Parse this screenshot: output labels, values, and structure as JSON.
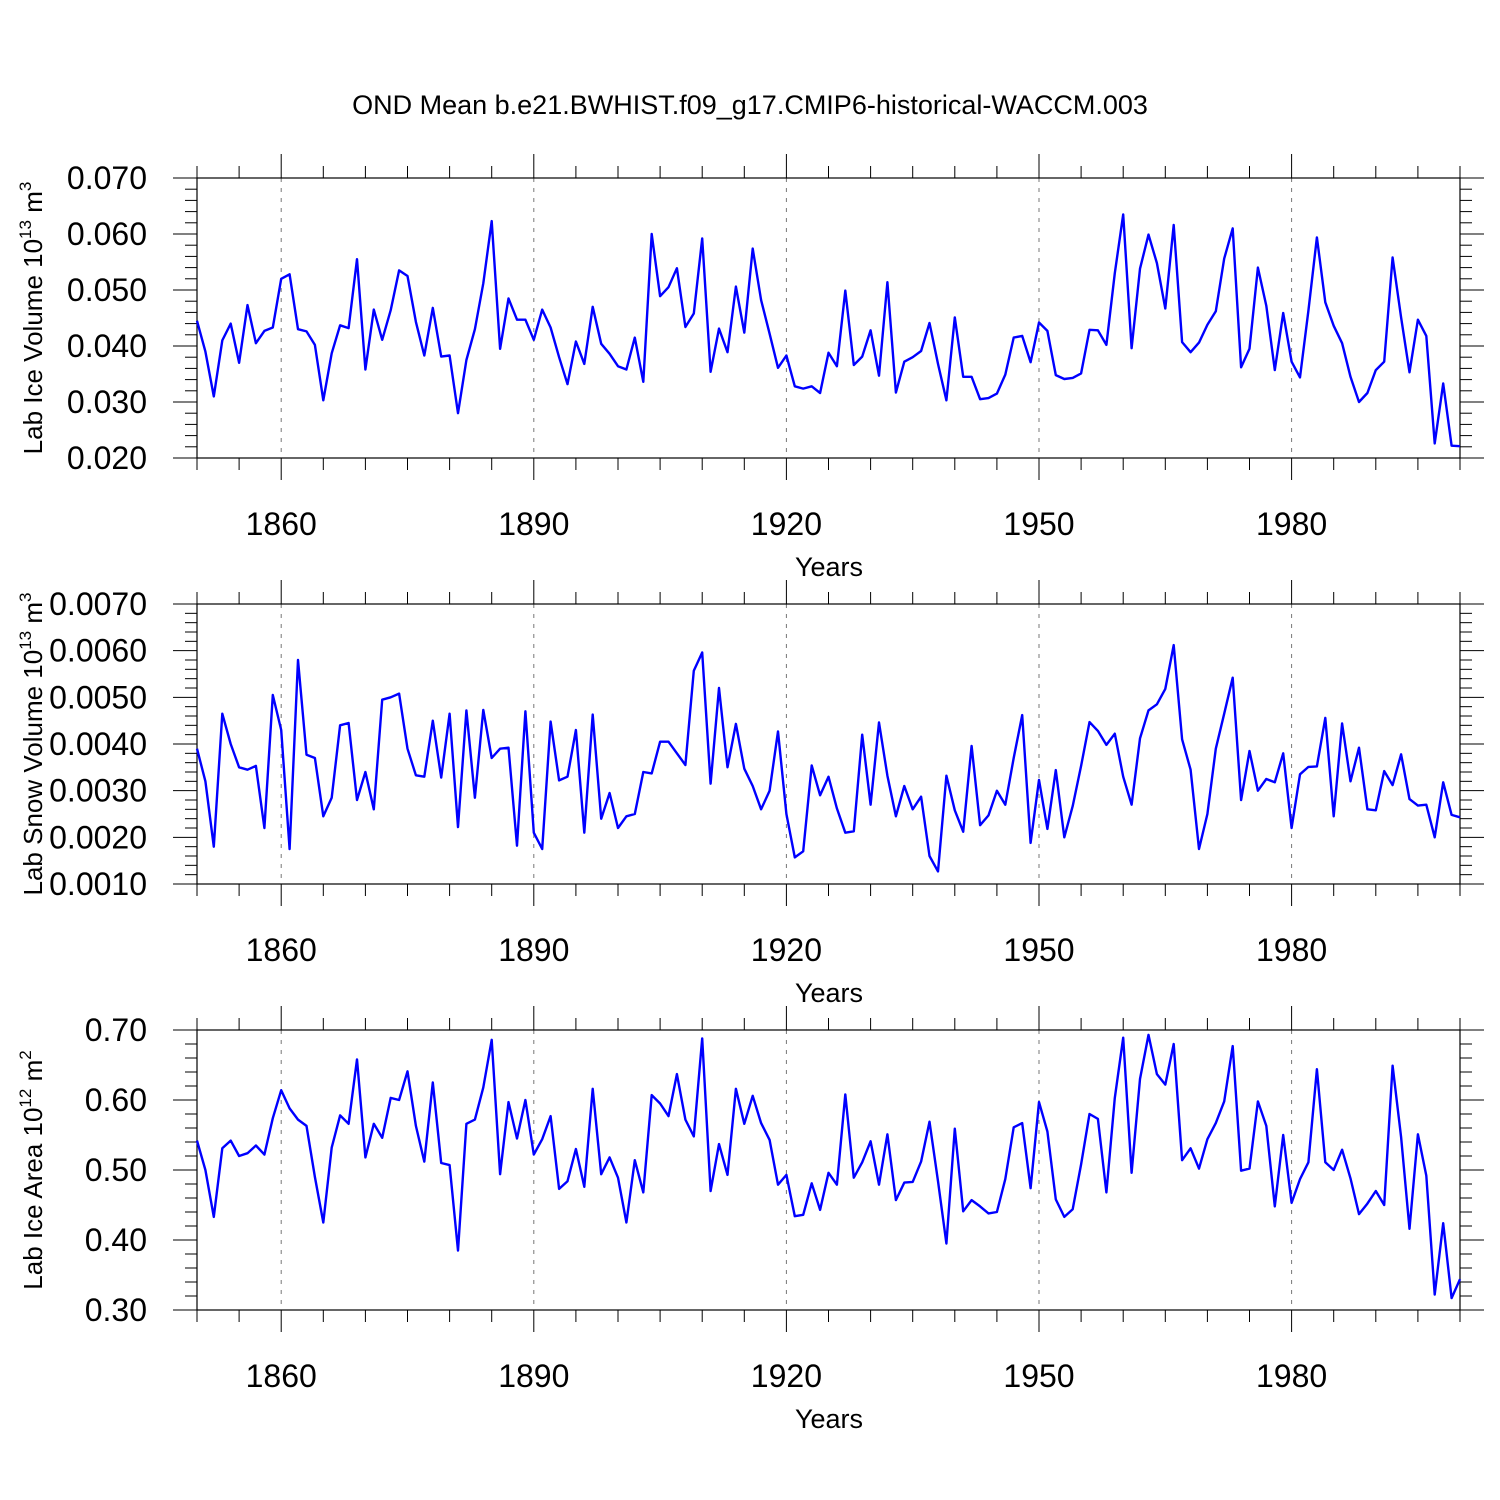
{
  "figure_title": "OND Mean b.e21.BWHIST.f09_g17.CMIP6-historical-WACCM.003",
  "colors": {
    "line": "#0000ff",
    "axis": "#000000",
    "grid": "#777777"
  },
  "chart_data": [
    {
      "type": "line",
      "ylabel_main": "Lab Ice Volume 10",
      "ylabel_exp": "13",
      "ylabel_unit": " m",
      "ylabel_unit_exp": "3",
      "xlabel": "Years",
      "xlim": [
        1850,
        2000
      ],
      "ylim": [
        0.02,
        0.07
      ],
      "yticks": [
        0.02,
        0.03,
        0.04,
        0.05,
        0.06,
        0.07
      ],
      "ytick_labels": [
        "0.020",
        "0.030",
        "0.040",
        "0.050",
        "0.060",
        "0.070"
      ],
      "xticks": [
        1860,
        1890,
        1920,
        1950,
        1980
      ],
      "xtick_labels": [
        "1860",
        "1890",
        "1920",
        "1950",
        "1980"
      ],
      "x_start": 1850,
      "values": [
        0.0445,
        0.039,
        0.031,
        0.041,
        0.044,
        0.037,
        0.0473,
        0.0405,
        0.0427,
        0.0433,
        0.052,
        0.0528,
        0.043,
        0.0426,
        0.0402,
        0.0303,
        0.0387,
        0.0437,
        0.0432,
        0.0555,
        0.0358,
        0.0465,
        0.0411,
        0.0464,
        0.0535,
        0.0525,
        0.0443,
        0.0383,
        0.0468,
        0.0381,
        0.0383,
        0.028,
        0.0375,
        0.043,
        0.0512,
        0.0623,
        0.0395,
        0.0485,
        0.0447,
        0.0447,
        0.0411,
        0.0465,
        0.0433,
        0.038,
        0.0332,
        0.0408,
        0.0368,
        0.047,
        0.0404,
        0.0386,
        0.0364,
        0.0358,
        0.0415,
        0.0336,
        0.06,
        0.0489,
        0.0505,
        0.0539,
        0.0434,
        0.0458,
        0.0592,
        0.0354,
        0.0431,
        0.0389,
        0.0506,
        0.0424,
        0.0574,
        0.0482,
        0.0422,
        0.0361,
        0.0383,
        0.0328,
        0.0324,
        0.0328,
        0.0316,
        0.0388,
        0.0364,
        0.0499,
        0.0366,
        0.0381,
        0.0428,
        0.0347,
        0.0514,
        0.0317,
        0.0372,
        0.038,
        0.0391,
        0.0441,
        0.0368,
        0.0303,
        0.0451,
        0.0345,
        0.0345,
        0.0305,
        0.0307,
        0.0315,
        0.0349,
        0.0415,
        0.0418,
        0.0371,
        0.0442,
        0.0427,
        0.0348,
        0.0341,
        0.0343,
        0.0351,
        0.0429,
        0.0428,
        0.0402,
        0.053,
        0.0635,
        0.0396,
        0.0538,
        0.0599,
        0.0548,
        0.0467,
        0.0616,
        0.0407,
        0.0389,
        0.0406,
        0.0438,
        0.0462,
        0.0556,
        0.061,
        0.0362,
        0.0395,
        0.054,
        0.0472,
        0.0357,
        0.0459,
        0.0372,
        0.0344,
        0.0463,
        0.0594,
        0.0478,
        0.0436,
        0.0405,
        0.0345,
        0.03,
        0.0316,
        0.0357,
        0.0372,
        0.0558,
        0.0451,
        0.0353,
        0.0447,
        0.0418,
        0.0226,
        0.0333,
        0.0222,
        0.0221
      ]
    },
    {
      "type": "line",
      "ylabel_main": "Lab Snow Volume 10",
      "ylabel_exp": "13",
      "ylabel_unit": " m",
      "ylabel_unit_exp": "3",
      "xlabel": "Years",
      "xlim": [
        1850,
        2000
      ],
      "ylim": [
        0.001,
        0.007
      ],
      "yticks": [
        0.001,
        0.002,
        0.003,
        0.004,
        0.005,
        0.006,
        0.007
      ],
      "ytick_labels": [
        "0.0010",
        "0.0020",
        "0.0030",
        "0.0040",
        "0.0050",
        "0.0060",
        "0.0070"
      ],
      "xticks": [
        1860,
        1890,
        1920,
        1950,
        1980
      ],
      "xtick_labels": [
        "1860",
        "1890",
        "1920",
        "1950",
        "1980"
      ],
      "x_start": 1850,
      "values": [
        0.0039,
        0.0032,
        0.0018,
        0.00465,
        0.004,
        0.0035,
        0.00345,
        0.00353,
        0.0022,
        0.00505,
        0.0043,
        0.00175,
        0.0058,
        0.00377,
        0.0037,
        0.00245,
        0.00285,
        0.0044,
        0.00445,
        0.0028,
        0.0034,
        0.0026,
        0.00495,
        0.005,
        0.00508,
        0.0039,
        0.00333,
        0.0033,
        0.0045,
        0.00328,
        0.00465,
        0.00222,
        0.00472,
        0.00285,
        0.00473,
        0.0037,
        0.0039,
        0.00392,
        0.00182,
        0.0047,
        0.0021,
        0.00175,
        0.00448,
        0.00322,
        0.0033,
        0.0043,
        0.0021,
        0.00463,
        0.0024,
        0.00295,
        0.0022,
        0.00245,
        0.0025,
        0.0034,
        0.00337,
        0.00405,
        0.00405,
        0.0038,
        0.00355,
        0.00557,
        0.00596,
        0.00315,
        0.0052,
        0.0035,
        0.00443,
        0.00347,
        0.0031,
        0.0026,
        0.003,
        0.00427,
        0.0025,
        0.00157,
        0.0017,
        0.00354,
        0.0029,
        0.0033,
        0.00262,
        0.0021,
        0.00213,
        0.0042,
        0.0027,
        0.00446,
        0.00332,
        0.00245,
        0.0031,
        0.0026,
        0.00287,
        0.0016,
        0.00127,
        0.00332,
        0.00258,
        0.00212,
        0.00396,
        0.00226,
        0.00247,
        0.003,
        0.0027,
        0.0037,
        0.00462,
        0.00188,
        0.00323,
        0.00218,
        0.00344,
        0.002,
        0.00267,
        0.00353,
        0.00447,
        0.00428,
        0.00398,
        0.00422,
        0.0033,
        0.0027,
        0.00412,
        0.00472,
        0.00485,
        0.00518,
        0.00612,
        0.0041,
        0.00345,
        0.00175,
        0.0025,
        0.0039,
        0.00465,
        0.00542,
        0.0028,
        0.00385,
        0.003,
        0.00325,
        0.00318,
        0.0038,
        0.0022,
        0.00335,
        0.00351,
        0.00352,
        0.00456,
        0.00245,
        0.00444,
        0.0032,
        0.00392,
        0.0026,
        0.00258,
        0.00342,
        0.00312,
        0.00378,
        0.00282,
        0.00268,
        0.0027,
        0.002,
        0.00318,
        0.00248,
        0.00243
      ]
    },
    {
      "type": "line",
      "ylabel_main": "Lab Ice Area 10",
      "ylabel_exp": "12",
      "ylabel_unit": " m",
      "ylabel_unit_exp": "2",
      "xlabel": "Years",
      "xlim": [
        1850,
        2000
      ],
      "ylim": [
        0.3,
        0.7
      ],
      "yticks": [
        0.3,
        0.4,
        0.5,
        0.6,
        0.7
      ],
      "ytick_labels": [
        "0.30",
        "0.40",
        "0.50",
        "0.60",
        "0.70"
      ],
      "xticks": [
        1860,
        1890,
        1920,
        1950,
        1980
      ],
      "xtick_labels": [
        "1860",
        "1890",
        "1920",
        "1950",
        "1980"
      ],
      "x_start": 1850,
      "values": [
        0.542,
        0.5,
        0.433,
        0.531,
        0.542,
        0.52,
        0.524,
        0.535,
        0.522,
        0.574,
        0.614,
        0.588,
        0.572,
        0.563,
        0.49,
        0.425,
        0.532,
        0.578,
        0.566,
        0.658,
        0.518,
        0.566,
        0.546,
        0.603,
        0.6,
        0.641,
        0.563,
        0.512,
        0.625,
        0.51,
        0.507,
        0.385,
        0.566,
        0.572,
        0.618,
        0.686,
        0.494,
        0.597,
        0.545,
        0.6,
        0.522,
        0.544,
        0.577,
        0.473,
        0.484,
        0.53,
        0.476,
        0.616,
        0.494,
        0.518,
        0.489,
        0.425,
        0.514,
        0.468,
        0.607,
        0.595,
        0.577,
        0.637,
        0.572,
        0.548,
        0.688,
        0.47,
        0.537,
        0.493,
        0.616,
        0.566,
        0.606,
        0.567,
        0.543,
        0.479,
        0.493,
        0.434,
        0.436,
        0.481,
        0.443,
        0.496,
        0.479,
        0.608,
        0.489,
        0.511,
        0.541,
        0.479,
        0.551,
        0.457,
        0.482,
        0.483,
        0.512,
        0.569,
        0.484,
        0.395,
        0.559,
        0.441,
        0.457,
        0.448,
        0.438,
        0.44,
        0.487,
        0.561,
        0.567,
        0.474,
        0.597,
        0.555,
        0.458,
        0.433,
        0.444,
        0.508,
        0.58,
        0.573,
        0.468,
        0.603,
        0.689,
        0.496,
        0.63,
        0.693,
        0.637,
        0.622,
        0.68,
        0.514,
        0.531,
        0.502,
        0.544,
        0.567,
        0.598,
        0.677,
        0.499,
        0.502,
        0.598,
        0.563,
        0.448,
        0.55,
        0.453,
        0.487,
        0.511,
        0.644,
        0.511,
        0.5,
        0.529,
        0.488,
        0.437,
        0.452,
        0.47,
        0.45,
        0.649,
        0.547,
        0.416,
        0.551,
        0.492,
        0.322,
        0.424,
        0.317,
        0.344
      ]
    }
  ]
}
